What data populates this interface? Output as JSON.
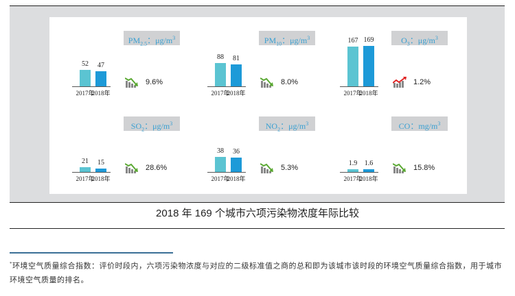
{
  "colors": {
    "y2017": "#5bc4d2",
    "y2018": "#1d9ad8",
    "down": "#5aa832",
    "up": "#e02424",
    "label_bg": "#d0d1d3",
    "label_text": "#3aa0d2"
  },
  "year_labels": [
    "2017年",
    "2018年"
  ],
  "pollutants": [
    {
      "name": "PM",
      "sub": "2.5",
      "unit": "：μg/m",
      "sup": "3",
      "v2017": "52",
      "v2018": "47",
      "change": "9.6%",
      "trend": "down"
    },
    {
      "name": "PM",
      "sub": "10",
      "unit": "：μg/m",
      "sup": "3",
      "v2017": "88",
      "v2018": "81",
      "change": "8.0%",
      "trend": "down"
    },
    {
      "name": "O",
      "sub": "3",
      "unit": "：μg/m",
      "sup": "3",
      "v2017": "167",
      "v2018": "169",
      "change": "1.2%",
      "trend": "up"
    },
    {
      "name": "SO",
      "sub": "2",
      "unit": "：μg/m",
      "sup": "3",
      "v2017": "21",
      "v2018": "15",
      "change": "28.6%",
      "trend": "down"
    },
    {
      "name": "NO",
      "sub": "2",
      "unit": "：μg/m",
      "sup": "3",
      "v2017": "38",
      "v2018": "36",
      "change": "5.3%",
      "trend": "down"
    },
    {
      "name": "CO",
      "sub": "",
      "unit": "：mg/m",
      "sup": "3",
      "v2017": "1.9",
      "v2018": "1.6",
      "change": "15.8%",
      "trend": "down"
    }
  ],
  "title": "2018 年 169 个城市六项污染物浓度年际比较",
  "footnote": {
    "mark": "*",
    "text": "环境空气质量综合指数：评价时段内，六项污染物浓度与对应的二级标准值之商的总和即为该城市该时段的环境空气质量综合指数，用于城市环境空气质量的排名。"
  }
}
